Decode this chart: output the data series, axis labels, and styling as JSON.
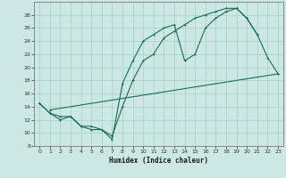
{
  "xlabel": "Humidex (Indice chaleur)",
  "bg_color": "#cce8e4",
  "grid_color": "#aacccc",
  "line_color": "#1a6b5a",
  "ylim": [
    8,
    30
  ],
  "xlim": [
    -0.5,
    23.5
  ],
  "yticks": [
    8,
    10,
    12,
    14,
    16,
    18,
    20,
    22,
    24,
    26,
    28
  ],
  "xticks": [
    0,
    1,
    2,
    3,
    4,
    5,
    6,
    7,
    8,
    9,
    10,
    11,
    12,
    13,
    14,
    15,
    16,
    17,
    18,
    19,
    20,
    21,
    22,
    23
  ],
  "line1_x": [
    0,
    1,
    2,
    3,
    4,
    5,
    6,
    7,
    8,
    9,
    10,
    11,
    12,
    13,
    14,
    15,
    16,
    17,
    18,
    19,
    20,
    21,
    22,
    23
  ],
  "line1_y": [
    14.5,
    13.0,
    12.5,
    12.5,
    11.0,
    10.5,
    10.5,
    9.0,
    17.5,
    21.0,
    24.0,
    25.0,
    26.0,
    26.5,
    21.0,
    22.0,
    26.0,
    27.5,
    28.5,
    29.0,
    27.5,
    25.0,
    21.5,
    19.0
  ],
  "line2_x": [
    0,
    1,
    2,
    3,
    4,
    5,
    6,
    7,
    8,
    9,
    10,
    11,
    12,
    13,
    14,
    15,
    16,
    17,
    18,
    19,
    20,
    21
  ],
  "line2_y": [
    14.5,
    13.0,
    12.0,
    12.5,
    11.0,
    11.0,
    10.5,
    9.5,
    14.0,
    18.0,
    21.0,
    22.0,
    24.5,
    25.5,
    26.5,
    27.5,
    28.0,
    28.5,
    29.0,
    29.0,
    27.5,
    25.0
  ],
  "line3_x": [
    1,
    23
  ],
  "line3_y": [
    13.5,
    19.0
  ]
}
